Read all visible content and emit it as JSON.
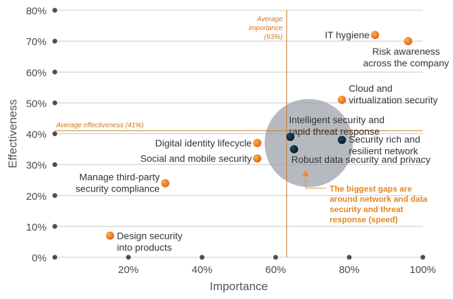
{
  "chart_data": {
    "type": "scatter",
    "xlabel": "Importance",
    "ylabel": "Effectiveness",
    "xlim": [
      0,
      100
    ],
    "ylim": [
      0,
      80
    ],
    "x_ticks": [
      {
        "value": 20,
        "label": "20%"
      },
      {
        "value": 40,
        "label": "40%"
      },
      {
        "value": 60,
        "label": "60%"
      },
      {
        "value": 80,
        "label": "80%"
      },
      {
        "value": 100,
        "label": "100%"
      }
    ],
    "y_ticks": [
      {
        "value": 0,
        "label": "0%"
      },
      {
        "value": 10,
        "label": "10%"
      },
      {
        "value": 20,
        "label": "20%"
      },
      {
        "value": 30,
        "label": "30%"
      },
      {
        "value": 40,
        "label": "40%"
      },
      {
        "value": 50,
        "label": "50%"
      },
      {
        "value": 60,
        "label": "60%"
      },
      {
        "value": 70,
        "label": "70%"
      },
      {
        "value": 80,
        "label": "80%"
      }
    ],
    "grid": "horizontal",
    "reference_lines": {
      "average_importance": {
        "value": 63,
        "label_lines": [
          "Average",
          "importance",
          "(63%)"
        ]
      },
      "average_effectiveness": {
        "value": 41,
        "label": "Average effectiveness (41%)"
      }
    },
    "points": [
      {
        "label_lines": [
          "IT hygiene"
        ],
        "x": 87,
        "y": 72,
        "color": "orange"
      },
      {
        "label_lines": [
          "Risk awareness",
          "across the company"
        ],
        "x": 96,
        "y": 70,
        "color": "orange"
      },
      {
        "label_lines": [
          "Cloud and",
          "virtualization security"
        ],
        "x": 78,
        "y": 51,
        "color": "orange"
      },
      {
        "label_lines": [
          "Intelligent security and",
          "rapid threat response"
        ],
        "x": 64,
        "y": 39,
        "color": "navy"
      },
      {
        "label_lines": [
          "Security rich and",
          "resilient network"
        ],
        "x": 78,
        "y": 38,
        "color": "navy"
      },
      {
        "label_lines": [
          "Robust data security and privacy"
        ],
        "x": 65,
        "y": 35,
        "color": "navy"
      },
      {
        "label_lines": [
          "Digital identity lifecycle"
        ],
        "x": 55,
        "y": 37,
        "color": "orange"
      },
      {
        "label_lines": [
          "Social and mobile security"
        ],
        "x": 55,
        "y": 32,
        "color": "orange"
      },
      {
        "label_lines": [
          "Manage third-party",
          "security compliance"
        ],
        "x": 30,
        "y": 24,
        "color": "orange"
      },
      {
        "label_lines": [
          "Design security",
          "into products"
        ],
        "x": 15,
        "y": 7,
        "color": "orange"
      }
    ],
    "gap_highlight": {
      "center": [
        69,
        37
      ],
      "radius_x_units": 12
    },
    "callout": {
      "lines": [
        "The biggest gaps are",
        "around network and data",
        "security and threat",
        "response (speed)"
      ]
    },
    "colors": {
      "orange": "#f08a24",
      "orange_dark": "#c4511a",
      "navy": "#0c2b40",
      "reference": "#c8781e",
      "callout_text": "#e5861f",
      "grid": "#c8c8c8",
      "axis_dot": "#4f4f4f",
      "circle_fill": "#9aa0a8"
    }
  }
}
